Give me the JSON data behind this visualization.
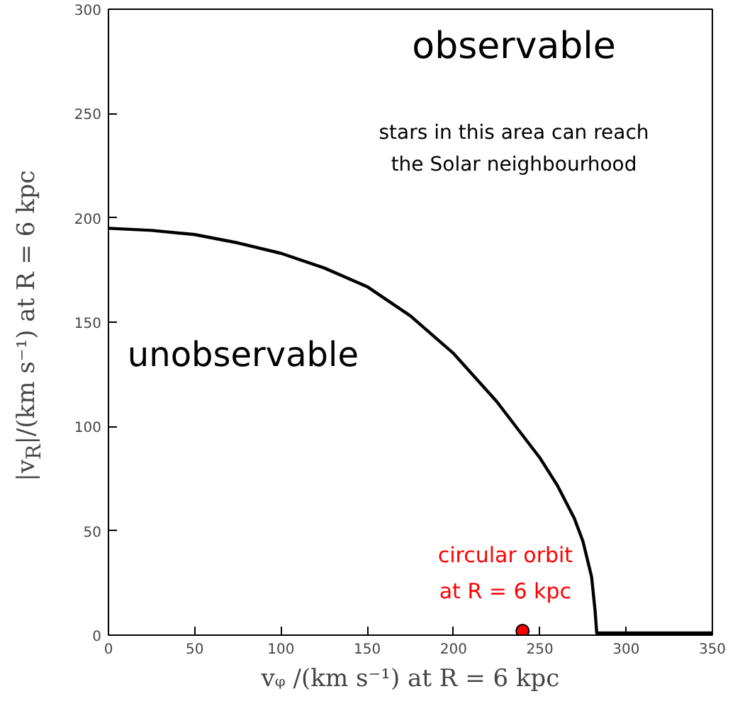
{
  "chart_data": {
    "type": "line",
    "xlabel": "vᵩ /(km s⁻¹) at R = 6 kpc",
    "ylabel": "|v$_{R}$|/(km s⁻¹) at R = 6 kpc",
    "xlim": [
      0,
      350
    ],
    "ylim": [
      0,
      300
    ],
    "xticks": [
      0,
      50,
      100,
      150,
      200,
      250,
      300,
      350
    ],
    "yticks": [
      0,
      50,
      100,
      150,
      200,
      250,
      300
    ],
    "grid": false,
    "series": [
      {
        "type": "line",
        "color": "#000000",
        "x": [
          0,
          25,
          50,
          75,
          100,
          125,
          150,
          175,
          200,
          225,
          250,
          260,
          270,
          275,
          280,
          282,
          283,
          290,
          350
        ],
        "values": [
          195,
          194,
          192,
          188,
          183,
          176,
          167,
          153,
          135,
          112,
          85,
          72,
          56,
          45,
          28,
          12,
          1,
          1,
          1
        ]
      },
      {
        "type": "scatter",
        "color": "#ff0000",
        "marker": "circle",
        "x": [
          240
        ],
        "values": [
          2
        ]
      }
    ],
    "annotations": [
      "observable",
      "stars in this area can reach\nthe Solar neighbourhood",
      "unobservable",
      "circular orbit\nat R = 6 kpc"
    ]
  }
}
